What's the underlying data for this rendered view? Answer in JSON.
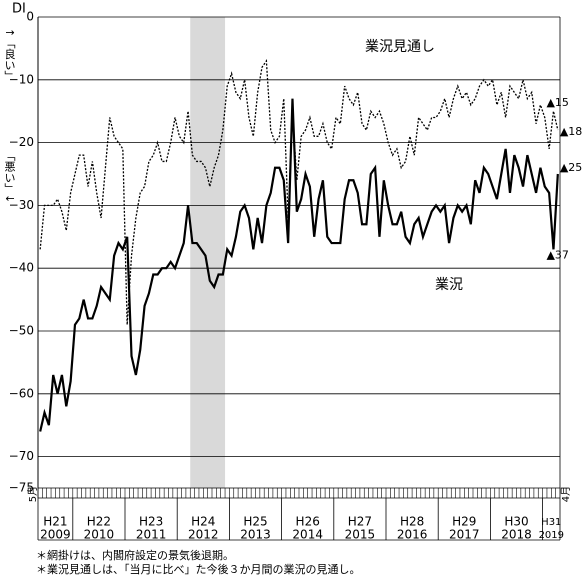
{
  "chart_data": {
    "type": "line",
    "y_label_top": "DI",
    "y_label_good": "↑「良い」",
    "y_label_bad": "「悪い」↓",
    "x_start_label": "5月",
    "x_end_label": "4月",
    "x": [
      "2009-05",
      "2009-06",
      "2009-07",
      "2009-08",
      "2009-09",
      "2009-10",
      "2009-11",
      "2009-12",
      "2010-01",
      "2010-02",
      "2010-03",
      "2010-04",
      "2010-05",
      "2010-06",
      "2010-07",
      "2010-08",
      "2010-09",
      "2010-10",
      "2010-11",
      "2010-12",
      "2011-01",
      "2011-02",
      "2011-03",
      "2011-04",
      "2011-05",
      "2011-06",
      "2011-07",
      "2011-08",
      "2011-09",
      "2011-10",
      "2011-11",
      "2011-12",
      "2012-01",
      "2012-02",
      "2012-03",
      "2012-04",
      "2012-05",
      "2012-06",
      "2012-07",
      "2012-08",
      "2012-09",
      "2012-10",
      "2012-11",
      "2012-12",
      "2013-01",
      "2013-02",
      "2013-03",
      "2013-04",
      "2013-05",
      "2013-06",
      "2013-07",
      "2013-08",
      "2013-09",
      "2013-10",
      "2013-11",
      "2013-12",
      "2014-01",
      "2014-02",
      "2014-03",
      "2014-04",
      "2014-05",
      "2014-06",
      "2014-07",
      "2014-08",
      "2014-09",
      "2014-10",
      "2014-11",
      "2014-12",
      "2015-01",
      "2015-02",
      "2015-03",
      "2015-04",
      "2015-05",
      "2015-06",
      "2015-07",
      "2015-08",
      "2015-09",
      "2015-10",
      "2015-11",
      "2015-12",
      "2016-01",
      "2016-02",
      "2016-03",
      "2016-04",
      "2016-05",
      "2016-06",
      "2016-07",
      "2016-08",
      "2016-09",
      "2016-10",
      "2016-11",
      "2016-12",
      "2017-01",
      "2017-02",
      "2017-03",
      "2017-04",
      "2017-05",
      "2017-06",
      "2017-07",
      "2017-08",
      "2017-09",
      "2017-10",
      "2017-11",
      "2017-12",
      "2018-01",
      "2018-02",
      "2018-03",
      "2018-04",
      "2018-05",
      "2018-06",
      "2018-07",
      "2018-08",
      "2018-09",
      "2018-10",
      "2018-11",
      "2018-12",
      "2019-01",
      "2019-02",
      "2019-03",
      "2019-04"
    ],
    "year_labels": [
      {
        "era": "H21",
        "year": "2009"
      },
      {
        "era": "H22",
        "year": "2010"
      },
      {
        "era": "H23",
        "year": "2011"
      },
      {
        "era": "H24",
        "year": "2012"
      },
      {
        "era": "H25",
        "year": "2013"
      },
      {
        "era": "H26",
        "year": "2014"
      },
      {
        "era": "H27",
        "year": "2015"
      },
      {
        "era": "H28",
        "year": "2016"
      },
      {
        "era": "H29",
        "year": "2017"
      },
      {
        "era": "H30",
        "year": "2018"
      },
      {
        "era": "H31",
        "year": "2019"
      }
    ],
    "shaded_period": [
      "2012-04",
      "2012-11"
    ],
    "series": [
      {
        "name": "業況見通し",
        "color": "#000000",
        "style": "dotted",
        "values": [
          -37,
          -30,
          -30,
          -30,
          -29,
          -31,
          -34,
          -28,
          -25,
          -22,
          -22,
          -27,
          -23,
          -28,
          -32,
          -24,
          -16,
          -19,
          -20,
          -21,
          -49,
          -38,
          -32,
          -28,
          -27,
          -23,
          -22,
          -20,
          -23,
          -23,
          -20,
          -16,
          -19,
          -20,
          -15,
          -22,
          -23,
          -23,
          -24,
          -27,
          -24,
          -22,
          -18,
          -11,
          -9,
          -12,
          -13,
          -10,
          -16,
          -19,
          -12,
          -8,
          -7,
          -18,
          -20,
          -19,
          -13,
          -32,
          -15,
          -26,
          -19,
          -18,
          -16,
          -19,
          -19,
          -17,
          -20,
          -21,
          -16,
          -17,
          -11,
          -13,
          -14,
          -12,
          -17,
          -18,
          -15,
          -16,
          -15,
          -17,
          -20,
          -22,
          -21,
          -24,
          -23,
          -19,
          -22,
          -16,
          -17,
          -18,
          -16,
          -16,
          -15,
          -13,
          -16,
          -13,
          -11,
          -13,
          -12,
          -14,
          -13,
          -11,
          -10,
          -11,
          -10,
          -14,
          -12,
          -16,
          -11,
          -12,
          -13,
          -10,
          -13,
          -12,
          -17,
          -14,
          -16,
          -21,
          -15,
          -18
        ]
      },
      {
        "name": "業況",
        "color": "#000000",
        "style": "solid",
        "values": [
          -66,
          -63,
          -65,
          -57,
          -60,
          -57,
          -62,
          -58,
          -49,
          -48,
          -45,
          -48,
          -48,
          -46,
          -43,
          -44,
          -45,
          -38,
          -36,
          -37,
          -35,
          -54,
          -57,
          -53,
          -46,
          -44,
          -41,
          -41,
          -40,
          -40,
          -39,
          -40,
          -38,
          -36,
          -30,
          -36,
          -36,
          -37,
          -38,
          -42,
          -43,
          -41,
          -41,
          -37,
          -38,
          -35,
          -31,
          -30,
          -32,
          -37,
          -32,
          -36,
          -30,
          -28,
          -24,
          -24,
          -26,
          -36,
          -13,
          -31,
          -29,
          -25,
          -27,
          -35,
          -29,
          -26,
          -35,
          -36,
          -36,
          -36,
          -29,
          -26,
          -26,
          -28,
          -33,
          -33,
          -25,
          -24,
          -35,
          -26,
          -30,
          -33,
          -33,
          -31,
          -35,
          -36,
          -33,
          -32,
          -35,
          -33,
          -31,
          -30,
          -31,
          -30,
          -36,
          -32,
          -30,
          -31,
          -30,
          -33,
          -26,
          -28,
          -24,
          -25,
          -27,
          -29,
          -25,
          -21,
          -28,
          -22,
          -24,
          -27,
          -22,
          -25,
          -28,
          -24,
          -27,
          -28,
          -37,
          -25
        ]
      }
    ],
    "annotations": [
      "▲15",
      "▲18",
      "▲25",
      "▲37"
    ],
    "ylim": [
      -75,
      0
    ],
    "yticks": [
      0,
      {
        "value": -10,
        "label": "−10"
      },
      {
        "value": -20,
        "label": "−20"
      },
      {
        "value": -30,
        "label": "−30"
      },
      {
        "value": -40,
        "label": "−40"
      },
      {
        "value": -50,
        "label": "−50"
      },
      {
        "value": -60,
        "label": "−60"
      },
      {
        "value": -70,
        "label": "−70"
      },
      {
        "value": -75,
        "label": "−75"
      }
    ],
    "grid": true,
    "notes": [
      "＊網掛けは、内閣府設定の景気後退期。",
      "＊業況見通しは、「当月に比べ」た今後３か月間の業況の見通し。"
    ]
  }
}
